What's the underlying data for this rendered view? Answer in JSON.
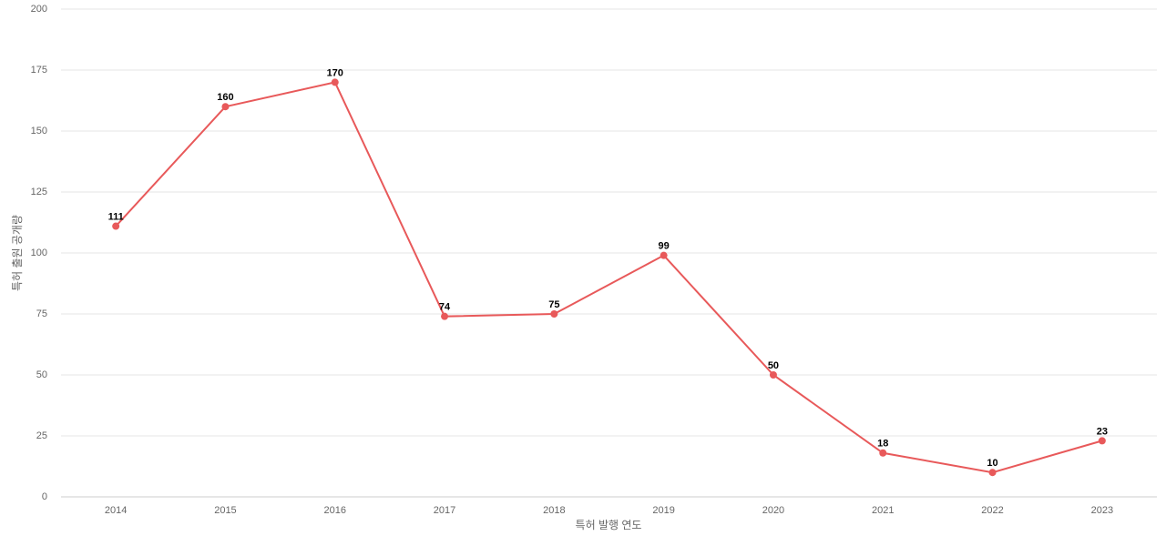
{
  "chart_data": {
    "type": "line",
    "x_label": "특허 발행 연도",
    "y_label": "특허 출원 공개량",
    "categories": [
      "2014",
      "2015",
      "2016",
      "2017",
      "2018",
      "2019",
      "2020",
      "2021",
      "2022",
      "2023"
    ],
    "series": [
      {
        "color": "#e8595a",
        "values": [
          111,
          160,
          170,
          74,
          75,
          99,
          50,
          18,
          10,
          23
        ]
      }
    ],
    "ylim": [
      0,
      200
    ],
    "yticks": [
      0,
      25,
      50,
      75,
      100,
      125,
      150,
      175,
      200
    ],
    "grid": true
  }
}
